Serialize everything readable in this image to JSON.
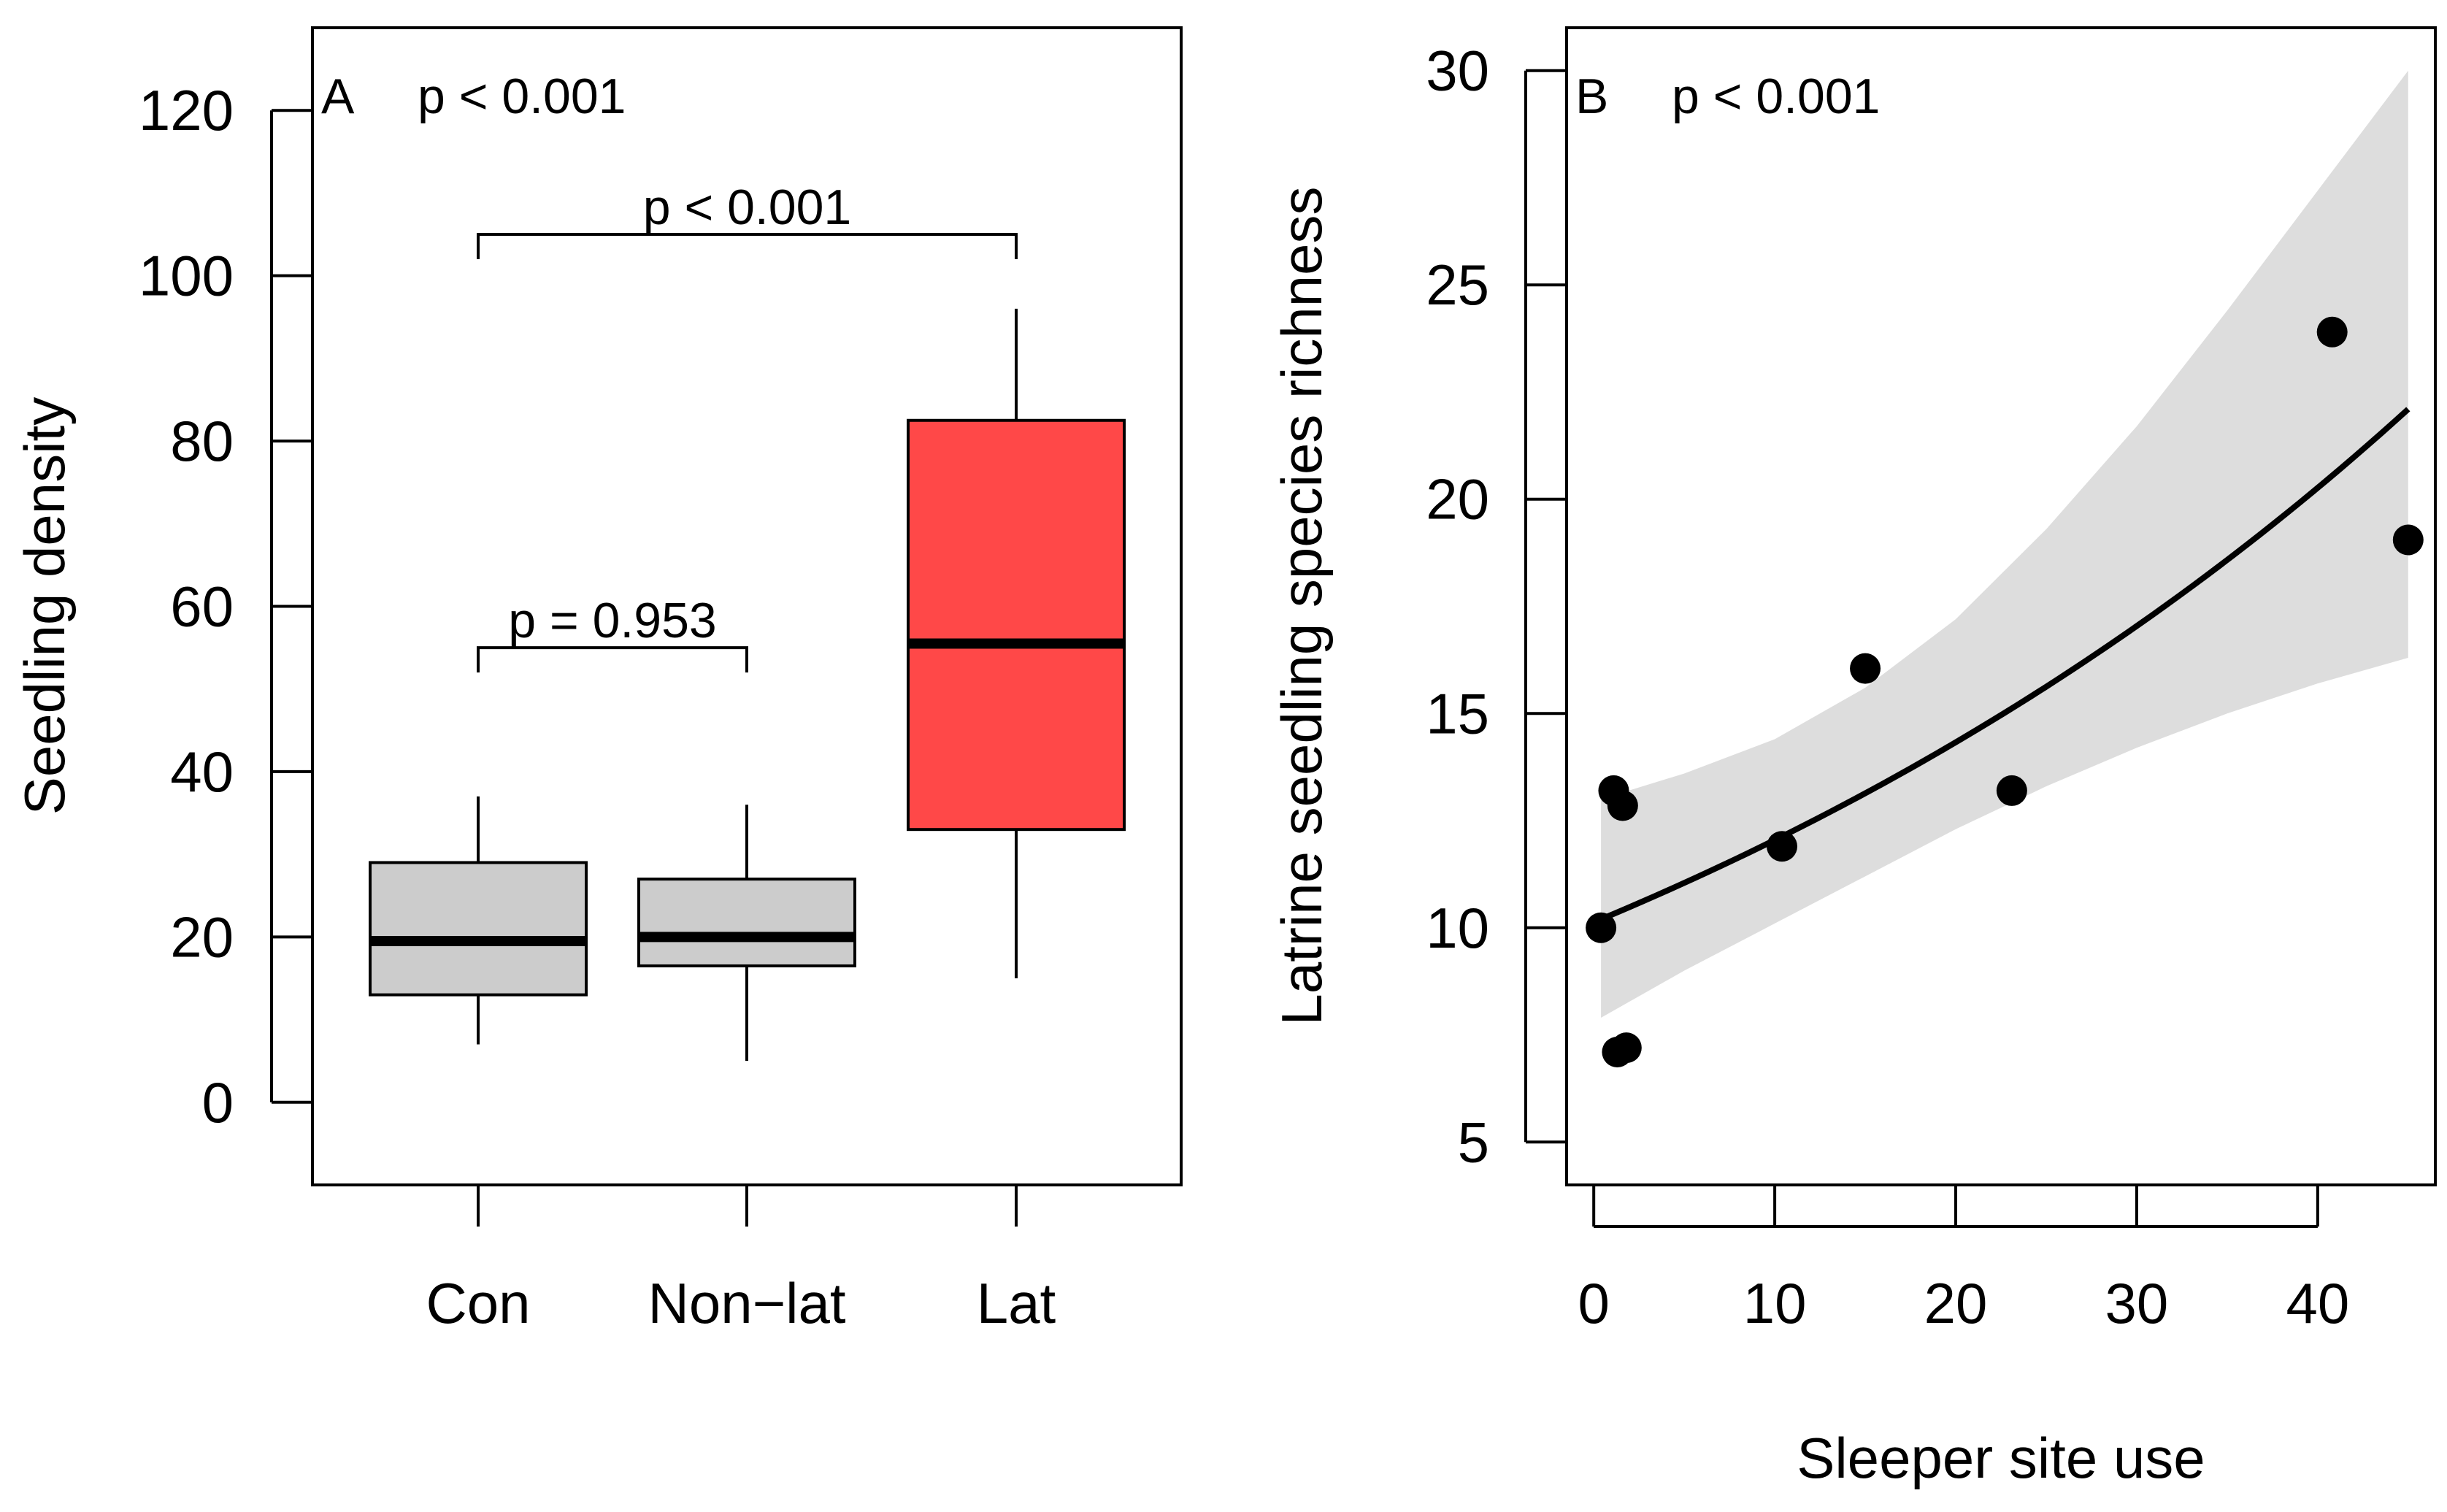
{
  "chart_data": [
    {
      "type": "box",
      "panel_label": "A",
      "overall_p": "p < 0.001",
      "xlabel": "",
      "ylabel": "Seedling density",
      "ylim": [
        -10,
        130
      ],
      "yticks": [
        0,
        20,
        40,
        60,
        80,
        100,
        120
      ],
      "ytick_labels": [
        "0",
        "20",
        "40",
        "60",
        "80",
        "100",
        "120"
      ],
      "categories": [
        "Con",
        "Non−lat",
        "Lat"
      ],
      "boxes": [
        {
          "name": "Con",
          "whisker_low": 7,
          "q1": 13,
          "median": 19.5,
          "q3": 29,
          "whisker_high": 37,
          "color": "#cccccc"
        },
        {
          "name": "Non−lat",
          "whisker_low": 5,
          "q1": 16.5,
          "median": 20,
          "q3": 27,
          "whisker_high": 36,
          "color": "#cccccc"
        },
        {
          "name": "Lat",
          "whisker_low": 15,
          "q1": 33,
          "median": 55.5,
          "q3": 82.5,
          "whisker_high": 96,
          "color": "#ff4848"
        }
      ],
      "comparisons": [
        {
          "from": 0,
          "to": 2,
          "y": 105,
          "label": "p < 0.001"
        },
        {
          "from": 0,
          "to": 1,
          "y": 55,
          "label": "p = 0.953"
        }
      ]
    },
    {
      "type": "scatter",
      "panel_label": "B",
      "overall_p": "p < 0.001",
      "xlabel": "Sleeper site use",
      "ylabel": "Latrine seedling species richness",
      "xlim": [
        -1.5,
        46.5
      ],
      "ylim": [
        4,
        31
      ],
      "xticks": [
        0,
        10,
        20,
        30,
        40
      ],
      "xtick_labels": [
        "0",
        "10",
        "20",
        "30",
        "40"
      ],
      "yticks": [
        5,
        10,
        15,
        20,
        25,
        30
      ],
      "ytick_labels": [
        "5",
        "10",
        "15",
        "20",
        "25",
        "30"
      ],
      "points": [
        {
          "x": 0.4,
          "y": 10
        },
        {
          "x": 1.1,
          "y": 13.2
        },
        {
          "x": 1.6,
          "y": 12.85
        },
        {
          "x": 1.3,
          "y": 7.1
        },
        {
          "x": 1.8,
          "y": 7.2
        },
        {
          "x": 10.4,
          "y": 11.9
        },
        {
          "x": 15.0,
          "y": 16.05
        },
        {
          "x": 23.1,
          "y": 13.2
        },
        {
          "x": 40.8,
          "y": 23.9
        },
        {
          "x": 45.0,
          "y": 19.05
        }
      ],
      "fit": {
        "model": "exponential",
        "x": [
          0.4,
          45.0
        ],
        "y": [
          10.2,
          22.1
        ]
      },
      "confidence_band": {
        "x": [
          0.4,
          5,
          10,
          15,
          20,
          25,
          30,
          35,
          40,
          45.0
        ],
        "lower": [
          7.9,
          9.0,
          10.1,
          11.2,
          12.3,
          13.3,
          14.2,
          15.0,
          15.7,
          16.3
        ],
        "upper": [
          13.0,
          13.6,
          14.4,
          15.6,
          17.2,
          19.3,
          21.7,
          24.4,
          27.2,
          30.0
        ]
      },
      "band_color": "#dddddd"
    }
  ]
}
